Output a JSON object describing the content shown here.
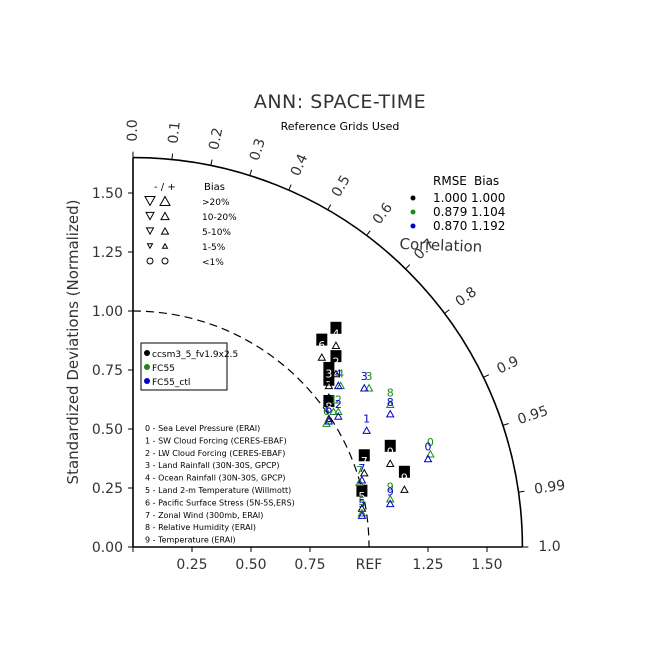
{
  "chart_data": {
    "type": "scatter",
    "subtype": "taylor-diagram",
    "title": "ANN: SPACE-TIME",
    "subtitle": "Reference Grids Used",
    "ylabel": "Standardized Deviations (Normalized)",
    "arc_label": "Correlation",
    "ref_label": "REF",
    "xlim": [
      0,
      1.65
    ],
    "ylim": [
      0,
      1.65
    ],
    "x_ticks": [
      "0.00",
      "0.25",
      "0.50",
      "0.75",
      "1.25",
      "1.50"
    ],
    "x_tick_values": [
      0,
      0.25,
      0.5,
      0.75,
      1.25,
      1.5
    ],
    "y_ticks": [
      "0.00",
      "0.25",
      "0.50",
      "0.75",
      "1.00",
      "1.25",
      "1.50"
    ],
    "y_tick_values": [
      0,
      0.25,
      0.5,
      0.75,
      1.0,
      1.25,
      1.5
    ],
    "corr_ticks": [
      {
        "value": 0.0,
        "label": "0.0"
      },
      {
        "value": 0.1,
        "label": "0.1"
      },
      {
        "value": 0.2,
        "label": "0.2"
      },
      {
        "value": 0.3,
        "label": "0.3"
      },
      {
        "value": 0.4,
        "label": "0.4"
      },
      {
        "value": 0.5,
        "label": "0.5"
      },
      {
        "value": 0.6,
        "label": "0.6"
      },
      {
        "value": 0.7,
        "label": "0.7"
      },
      {
        "value": 0.8,
        "label": "0.8"
      },
      {
        "value": 0.9,
        "label": "0.9"
      },
      {
        "value": 0.95,
        "label": "0.95"
      },
      {
        "value": 0.99,
        "label": "0.99"
      },
      {
        "value": 1.0,
        "label": "1.0"
      }
    ],
    "bias_legend": {
      "header_signs": "- / +",
      "header": "Bias",
      "rows": [
        {
          "range": ">20%",
          "symbol": "large-triangle"
        },
        {
          "range": "10-20%",
          "symbol": "medium-triangle"
        },
        {
          "range": "5-10%",
          "symbol": "small-triangle"
        },
        {
          "range": "1-5%",
          "symbol": "tiny-triangle"
        },
        {
          "range": "<1%",
          "symbol": "circle"
        }
      ]
    },
    "rmse_table": {
      "header_rmse": "RMSE",
      "header_bias": "Bias",
      "rows": [
        {
          "rmse": "1.000",
          "bias": "1.000",
          "color": "#000000"
        },
        {
          "rmse": "0.879",
          "bias": "1.104",
          "color": "#1a8a1a"
        },
        {
          "rmse": "0.870",
          "bias": "1.192",
          "color": "#0000cc"
        }
      ]
    },
    "series": [
      {
        "name": "ccsm3_5_fv1.9x2.5",
        "color": "#000000",
        "labeled": true,
        "points": [
          {
            "id": "0",
            "x": 1.09,
            "y": 0.38
          },
          {
            "id": "1",
            "x": 0.83,
            "y": 0.66
          },
          {
            "id": "2",
            "x": 0.86,
            "y": 0.76
          },
          {
            "id": "3",
            "x": 0.83,
            "y": 0.71
          },
          {
            "id": "4",
            "x": 0.86,
            "y": 0.88
          },
          {
            "id": "5",
            "x": 0.97,
            "y": 0.19
          },
          {
            "id": "6",
            "x": 0.8,
            "y": 0.83
          },
          {
            "id": "7",
            "x": 0.98,
            "y": 0.34
          },
          {
            "id": "8",
            "x": 0.83,
            "y": 0.57
          },
          {
            "id": "9",
            "x": 1.15,
            "y": 0.27
          }
        ]
      },
      {
        "name": "FC55",
        "color": "#1a8a1a",
        "labeled": false,
        "points": [
          {
            "id": "0",
            "x": 1.26,
            "y": 0.42
          },
          {
            "id": "1",
            "x": 0.85,
            "y": 0.6
          },
          {
            "id": "2",
            "x": 0.87,
            "y": 0.6
          },
          {
            "id": "3",
            "x": 1.0,
            "y": 0.7
          },
          {
            "id": "4",
            "x": 0.88,
            "y": 0.71
          },
          {
            "id": "5",
            "x": 0.97,
            "y": 0.17
          },
          {
            "id": "6",
            "x": 0.82,
            "y": 0.55
          },
          {
            "id": "7",
            "x": 0.96,
            "y": 0.3
          },
          {
            "id": "8",
            "x": 1.09,
            "y": 0.63
          },
          {
            "id": "9",
            "x": 1.09,
            "y": 0.23
          }
        ]
      },
      {
        "name": "FC55_ctl",
        "color": "#0000cc",
        "labeled": false,
        "points": [
          {
            "id": "0",
            "x": 1.25,
            "y": 0.4
          },
          {
            "id": "1",
            "x": 0.99,
            "y": 0.52
          },
          {
            "id": "2",
            "x": 0.87,
            "y": 0.58
          },
          {
            "id": "3",
            "x": 0.98,
            "y": 0.7
          },
          {
            "id": "4",
            "x": 0.87,
            "y": 0.71
          },
          {
            "id": "5",
            "x": 0.97,
            "y": 0.16
          },
          {
            "id": "6",
            "x": 0.83,
            "y": 0.56
          },
          {
            "id": "7",
            "x": 0.97,
            "y": 0.31
          },
          {
            "id": "8",
            "x": 1.09,
            "y": 0.59
          },
          {
            "id": "9",
            "x": 1.09,
            "y": 0.21
          }
        ]
      }
    ],
    "case_legend": [
      {
        "name": "ccsm3_5_fv1.9x2.5",
        "color": "#000000"
      },
      {
        "name": "FC55",
        "color": "#1a8a1a"
      },
      {
        "name": "FC55_ctl",
        "color": "#0000cc"
      }
    ],
    "variables": [
      "0 - Sea Level Pressure (ERAI)",
      "1 - SW Cloud Forcing (CERES-EBAF)",
      "2 - LW Cloud Forcing (CERES-EBAF)",
      "3 - Land Rainfall (30N-30S, GPCP)",
      "4 - Ocean Rainfall (30N-30S, GPCP)",
      "5 - Land 2-m Temperature (Willmott)",
      "6 - Pacific Surface Stress (5N-5S,ERS)",
      "7 - Zonal Wind (300mb, ERAI)",
      "8 - Relative Humidity (ERAI)",
      "9 - Temperature (ERAI)"
    ]
  }
}
